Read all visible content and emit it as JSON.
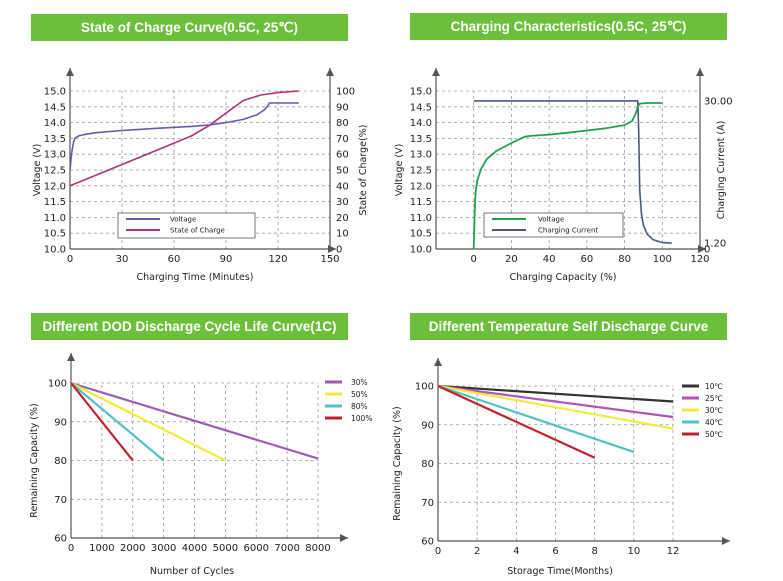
{
  "colors": {
    "banner_bg": "#6bbf3a",
    "banner_text": "#ffffff",
    "voltage_purple": "#6a5aa8",
    "soc_magenta": "#a8357e",
    "charge_green": "#22a050",
    "current_navy": "#4a5a7c",
    "dod_30": "#9a5fb0",
    "dod_50": "#f2ea3c",
    "dod_80": "#55c0c4",
    "dod_100": "#c0222e",
    "temp_10": "#333333",
    "temp_25": "#b156b3",
    "temp_30": "#f2ea3c",
    "temp_40": "#55c0c4",
    "temp_50": "#c0222e"
  },
  "chart_data": [
    {
      "type": "line",
      "title": "State of Charge Curve(0.5C, 25℃)",
      "xlabel": "Charging Time (Minutes)",
      "ylabel": "Voltage (V)",
      "ylabel_right": "State of Charge(%)",
      "xlim": [
        0,
        150
      ],
      "ylim": [
        10.0,
        15.0
      ],
      "ylim_right": [
        0,
        100
      ],
      "x_ticks": [
        "0",
        "30",
        "60",
        "90",
        "120",
        "150"
      ],
      "y_ticks": [
        "10.0",
        "10.5",
        "11.0",
        "11.5",
        "12.0",
        "12.5",
        "13.0",
        "13.5",
        "14.0",
        "14.5",
        "15.0"
      ],
      "y_ticks_right": [
        "0",
        "10",
        "20",
        "30",
        "40",
        "50",
        "60",
        "70",
        "80",
        "90",
        "100"
      ],
      "grid": true,
      "legend_position": "bottom-center",
      "series": [
        {
          "name": "Voltage",
          "axis": "left",
          "x": [
            0,
            1,
            2,
            3,
            5,
            8,
            15,
            30,
            50,
            70,
            80,
            90,
            100,
            108,
            112,
            114,
            115,
            120,
            132
          ],
          "y": [
            12.5,
            13.05,
            13.38,
            13.52,
            13.58,
            13.62,
            13.68,
            13.75,
            13.82,
            13.88,
            13.92,
            14.0,
            14.1,
            14.25,
            14.4,
            14.52,
            14.62,
            14.62,
            14.62
          ]
        },
        {
          "name": "State of Charge",
          "axis": "right",
          "x": [
            0,
            10,
            20,
            30,
            40,
            50,
            60,
            70,
            80,
            90,
            100,
            110,
            120,
            132
          ],
          "y": [
            40,
            44.5,
            49,
            53.5,
            58,
            62.5,
            67,
            71.5,
            78,
            86,
            94,
            97.5,
            99,
            100
          ]
        }
      ]
    },
    {
      "type": "line",
      "title": "Charging Characteristics(0.5C, 25℃)",
      "xlabel": "Charging Capacity (%)",
      "ylabel": "Voltage (V)",
      "ylabel_right": "Charging Current (A)",
      "xlim": [
        -20,
        120
      ],
      "ylim": [
        10.0,
        15.0
      ],
      "ylim_right": [
        0,
        32
      ],
      "x_ticks": [
        "0",
        "20",
        "40",
        "60",
        "80",
        "100",
        "120"
      ],
      "y_ticks": [
        "10.0",
        "10.5",
        "11.0",
        "11.5",
        "12.0",
        "12.5",
        "13.0",
        "13.5",
        "14.0",
        "14.5",
        "15.0"
      ],
      "y_ticks_right": [
        "0",
        "1.20",
        "30.00"
      ],
      "grid": true,
      "legend_position": "bottom-center",
      "series": [
        {
          "name": "Voltage",
          "axis": "left",
          "x": [
            0,
            0.5,
            1,
            2,
            4,
            7,
            12,
            20,
            27,
            30,
            40,
            50,
            60,
            70,
            80,
            84,
            86,
            87,
            87.5,
            88,
            92,
            100
          ],
          "y": [
            10.0,
            11.2,
            11.8,
            12.2,
            12.55,
            12.85,
            13.1,
            13.35,
            13.55,
            13.58,
            13.62,
            13.68,
            13.75,
            13.82,
            13.92,
            14.05,
            14.3,
            14.5,
            14.55,
            14.6,
            14.62,
            14.62
          ]
        },
        {
          "name": "Charging Current",
          "axis": "right",
          "x": [
            0,
            20,
            40,
            60,
            80,
            86,
            87,
            87.5,
            88,
            89,
            90,
            92,
            95,
            100,
            105
          ],
          "y": [
            30.0,
            30.0,
            30.0,
            30.0,
            30.0,
            30.0,
            30.0,
            24,
            12,
            7,
            4.8,
            3.0,
            1.9,
            1.3,
            1.2
          ]
        }
      ]
    },
    {
      "type": "line",
      "title": "Different DOD Discharge Cycle Life Curve(1C)",
      "xlabel": "Number of Cycles",
      "ylabel": "Remaining Capacity (%)",
      "xlim": [
        0,
        8000
      ],
      "ylim": [
        60,
        100
      ],
      "x_ticks": [
        "0",
        "1000",
        "2000",
        "3000",
        "4000",
        "5000",
        "6000",
        "7000",
        "8000"
      ],
      "y_ticks": [
        "60",
        "70",
        "80",
        "90",
        "100"
      ],
      "grid": true,
      "legend_position": "top-right",
      "series": [
        {
          "name": "30%",
          "x": [
            0,
            8000
          ],
          "y": [
            100,
            80.5
          ]
        },
        {
          "name": "50%",
          "x": [
            0,
            5000
          ],
          "y": [
            100,
            80
          ]
        },
        {
          "name": "80%",
          "x": [
            0,
            3000
          ],
          "y": [
            100,
            80
          ]
        },
        {
          "name": "100%",
          "x": [
            0,
            2000
          ],
          "y": [
            100,
            80
          ]
        }
      ]
    },
    {
      "type": "line",
      "title": "Different Temperature Self Discharge Curve",
      "xlabel": "Storage Time(Months)",
      "ylabel": "Remaining Capacity (%)",
      "xlim": [
        0,
        12
      ],
      "ylim": [
        60,
        100
      ],
      "x_ticks": [
        "0",
        "2",
        "4",
        "6",
        "8",
        "10",
        "12"
      ],
      "y_ticks": [
        "60",
        "70",
        "80",
        "90",
        "100"
      ],
      "grid": true,
      "legend_position": "top-right",
      "series": [
        {
          "name": "10℃",
          "x": [
            0,
            12
          ],
          "y": [
            100,
            96
          ]
        },
        {
          "name": "25℃",
          "x": [
            0,
            12
          ],
          "y": [
            100,
            92
          ]
        },
        {
          "name": "30℃",
          "x": [
            0,
            12
          ],
          "y": [
            100,
            89
          ]
        },
        {
          "name": "40℃",
          "x": [
            0,
            10
          ],
          "y": [
            100,
            83
          ]
        },
        {
          "name": "50℃",
          "x": [
            0,
            8
          ],
          "y": [
            100,
            81.5
          ]
        }
      ]
    }
  ]
}
